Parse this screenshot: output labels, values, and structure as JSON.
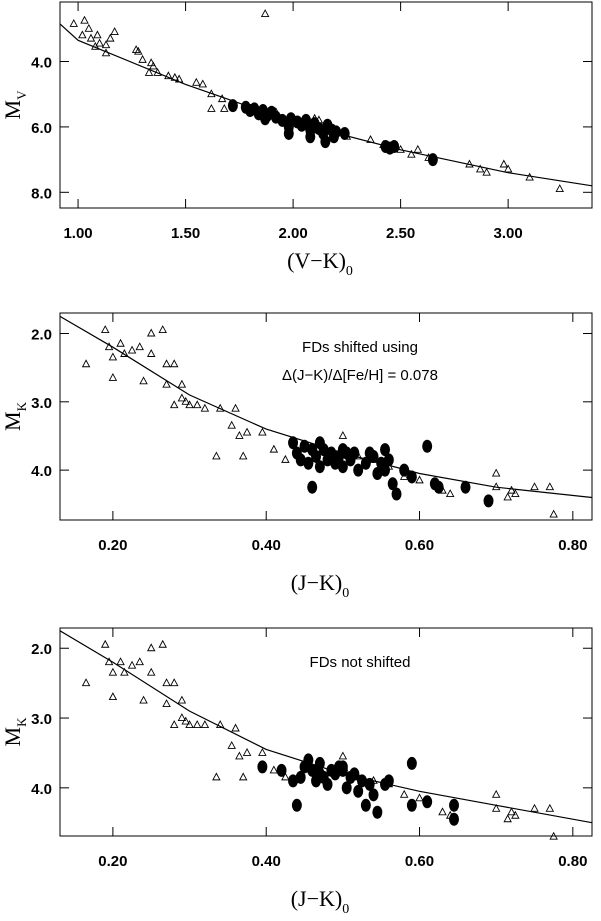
{
  "chart_data": [
    {
      "type": "scatter",
      "xlabel": "(V−K)",
      "xlabel_sub": "0",
      "ylabel": "M",
      "ylabel_sub": "V",
      "xlim": [
        0.916,
        3.39
      ],
      "ylim": [
        8.48,
        2.18
      ],
      "xticks": [
        {
          "value": 1.0,
          "label": "1.00"
        },
        {
          "value": 1.5,
          "label": "1.50"
        },
        {
          "value": 2.0,
          "label": "2.00"
        },
        {
          "value": 2.5,
          "label": "2.50"
        },
        {
          "value": 3.0,
          "label": "3.00"
        }
      ],
      "yticks": [
        {
          "value": 4.0,
          "label": "4.0"
        },
        {
          "value": 6.0,
          "label": "6.0"
        },
        {
          "value": 8.0,
          "label": "8.0"
        }
      ],
      "annotations": [],
      "series": [
        {
          "marker": "line",
          "color": "#000000",
          "x": [
            0.916,
            1.0,
            1.5,
            2.0,
            2.5,
            3.0,
            3.39
          ],
          "values": [
            2.85,
            3.35,
            4.7,
            5.85,
            6.7,
            7.4,
            7.8
          ]
        },
        {
          "marker": "triangle",
          "color": "#000000",
          "x": [
            0.98,
            1.03,
            1.05,
            1.02,
            1.06,
            1.09,
            1.1,
            1.08,
            1.13,
            1.15,
            1.17,
            1.13,
            1.27,
            1.28,
            1.3,
            1.34,
            1.35,
            1.37,
            1.33,
            1.42,
            1.45,
            1.47,
            1.55,
            1.58,
            1.62,
            1.62,
            1.67,
            1.68,
            1.87,
            1.92,
            2.1,
            2.12,
            2.25,
            2.36,
            2.42,
            2.5,
            2.55,
            2.58,
            2.63,
            2.82,
            2.87,
            2.9,
            2.98,
            3.0,
            3.1,
            3.24
          ],
          "values": [
            2.85,
            2.75,
            3.0,
            3.2,
            3.3,
            3.2,
            3.45,
            3.55,
            3.5,
            3.3,
            3.1,
            3.75,
            3.65,
            3.7,
            3.95,
            4.05,
            4.15,
            4.35,
            4.35,
            4.45,
            4.5,
            4.55,
            4.65,
            4.7,
            5.0,
            5.45,
            5.15,
            5.45,
            2.55,
            5.55,
            5.75,
            5.8,
            6.3,
            6.4,
            6.55,
            6.7,
            6.85,
            6.7,
            6.95,
            7.15,
            7.3,
            7.4,
            7.15,
            7.3,
            7.55,
            7.9
          ]
        },
        {
          "marker": "dot",
          "color": "#000000",
          "x": [
            1.72,
            1.78,
            1.8,
            1.82,
            1.84,
            1.86,
            1.88,
            1.9,
            1.92,
            1.95,
            1.98,
            1.99,
            2.02,
            2.04,
            2.06,
            2.08,
            2.1,
            2.12,
            2.14,
            2.16,
            2.18,
            2.19,
            2.2,
            2.24,
            2.15,
            2.08,
            1.98,
            2.43,
            2.45,
            2.47,
            2.65,
            1.87,
            2.1
          ],
          "values": [
            5.35,
            5.4,
            5.5,
            5.45,
            5.6,
            5.5,
            5.65,
            5.55,
            5.7,
            5.8,
            6.0,
            5.75,
            5.85,
            5.95,
            5.8,
            6.1,
            5.9,
            6.05,
            6.2,
            5.95,
            6.1,
            6.3,
            6.15,
            6.2,
            6.45,
            6.3,
            6.2,
            6.6,
            6.65,
            6.6,
            7.0,
            5.75,
            6.0
          ]
        }
      ]
    },
    {
      "type": "scatter",
      "xlabel": "(J−K)",
      "xlabel_sub": "0",
      "ylabel": "M",
      "ylabel_sub": "K",
      "xlim": [
        0.131,
        0.825
      ],
      "ylim": [
        4.73,
        1.7
      ],
      "xticks": [
        {
          "value": 0.2,
          "label": "0.20"
        },
        {
          "value": 0.4,
          "label": "0.40"
        },
        {
          "value": 0.6,
          "label": "0.60"
        },
        {
          "value": 0.8,
          "label": "0.80"
        }
      ],
      "yticks": [
        {
          "value": 2.0,
          "label": "2.0"
        },
        {
          "value": 3.0,
          "label": "3.0"
        },
        {
          "value": 4.0,
          "label": "4.0"
        }
      ],
      "annotations": [
        "FDs shifted using",
        "Δ(J−K)/Δ[Fe/H] = 0.078"
      ],
      "series": [
        {
          "marker": "line",
          "color": "#000000",
          "x": [
            0.131,
            0.2,
            0.3,
            0.4,
            0.5,
            0.6,
            0.7,
            0.825
          ],
          "values": [
            1.75,
            2.2,
            2.9,
            3.4,
            3.75,
            4.05,
            4.25,
            4.4
          ]
        },
        {
          "marker": "triangle",
          "color": "#000000",
          "x": [
            0.165,
            0.19,
            0.195,
            0.2,
            0.2,
            0.21,
            0.215,
            0.225,
            0.235,
            0.24,
            0.25,
            0.25,
            0.265,
            0.27,
            0.27,
            0.28,
            0.28,
            0.29,
            0.29,
            0.295,
            0.3,
            0.31,
            0.32,
            0.335,
            0.34,
            0.355,
            0.36,
            0.365,
            0.37,
            0.375,
            0.395,
            0.41,
            0.425,
            0.5,
            0.52,
            0.54,
            0.56,
            0.58,
            0.6,
            0.63,
            0.64,
            0.7,
            0.7,
            0.72,
            0.725,
            0.75,
            0.77,
            0.775,
            0.715
          ],
          "values": [
            2.45,
            1.95,
            2.2,
            2.65,
            2.35,
            2.15,
            2.3,
            2.25,
            2.2,
            2.7,
            2.0,
            2.3,
            1.95,
            2.45,
            2.75,
            2.45,
            3.05,
            2.95,
            2.75,
            3.0,
            3.05,
            3.05,
            3.1,
            3.8,
            3.1,
            3.35,
            3.1,
            3.5,
            3.8,
            3.45,
            3.45,
            3.7,
            3.85,
            3.5,
            3.8,
            3.85,
            3.95,
            4.1,
            4.15,
            4.3,
            4.35,
            4.05,
            4.25,
            4.3,
            4.35,
            4.25,
            4.25,
            4.65,
            4.4
          ]
        },
        {
          "marker": "dot",
          "color": "#000000",
          "x": [
            0.435,
            0.44,
            0.445,
            0.45,
            0.455,
            0.46,
            0.46,
            0.465,
            0.47,
            0.475,
            0.48,
            0.485,
            0.49,
            0.495,
            0.5,
            0.5,
            0.505,
            0.51,
            0.52,
            0.53,
            0.535,
            0.54,
            0.545,
            0.55,
            0.555,
            0.56,
            0.565,
            0.57,
            0.58,
            0.59,
            0.61,
            0.62,
            0.625,
            0.66,
            0.69,
            0.47,
            0.515,
            0.555
          ],
          "values": [
            3.6,
            3.75,
            3.85,
            3.65,
            3.9,
            3.7,
            4.25,
            3.8,
            3.95,
            3.7,
            3.85,
            3.75,
            3.9,
            3.8,
            3.7,
            3.95,
            3.75,
            3.85,
            4.0,
            3.9,
            3.75,
            3.8,
            4.05,
            3.9,
            3.7,
            3.85,
            4.2,
            4.35,
            4.0,
            4.1,
            3.65,
            4.2,
            4.25,
            4.25,
            4.45,
            3.6,
            3.75,
            4.0
          ]
        }
      ]
    },
    {
      "type": "scatter",
      "xlabel": "(J−K)",
      "xlabel_sub": "0",
      "ylabel": "M",
      "ylabel_sub": "K",
      "xlim": [
        0.131,
        0.825
      ],
      "ylim": [
        4.69,
        1.71
      ],
      "xticks": [
        {
          "value": 0.2,
          "label": "0.20"
        },
        {
          "value": 0.4,
          "label": "0.40"
        },
        {
          "value": 0.6,
          "label": "0.60"
        },
        {
          "value": 0.8,
          "label": "0.80"
        }
      ],
      "yticks": [
        {
          "value": 2.0,
          "label": "2.0"
        },
        {
          "value": 3.0,
          "label": "3.0"
        },
        {
          "value": 4.0,
          "label": "4.0"
        }
      ],
      "annotations": [
        "FDs not shifted"
      ],
      "series": [
        {
          "marker": "line",
          "color": "#000000",
          "x": [
            0.131,
            0.2,
            0.3,
            0.4,
            0.5,
            0.6,
            0.7,
            0.825
          ],
          "values": [
            1.75,
            2.2,
            2.9,
            3.45,
            3.8,
            4.05,
            4.25,
            4.5
          ]
        },
        {
          "marker": "triangle",
          "color": "#000000",
          "x": [
            0.165,
            0.19,
            0.195,
            0.2,
            0.2,
            0.21,
            0.215,
            0.225,
            0.235,
            0.24,
            0.25,
            0.25,
            0.265,
            0.27,
            0.27,
            0.28,
            0.28,
            0.29,
            0.29,
            0.295,
            0.3,
            0.31,
            0.32,
            0.335,
            0.34,
            0.355,
            0.36,
            0.365,
            0.37,
            0.375,
            0.395,
            0.41,
            0.425,
            0.5,
            0.52,
            0.54,
            0.56,
            0.58,
            0.6,
            0.63,
            0.64,
            0.7,
            0.7,
            0.72,
            0.725,
            0.75,
            0.77,
            0.775,
            0.715
          ],
          "values": [
            2.5,
            1.95,
            2.2,
            2.7,
            2.35,
            2.2,
            2.35,
            2.25,
            2.2,
            2.75,
            2.0,
            2.35,
            1.95,
            2.5,
            2.8,
            2.5,
            3.1,
            3.0,
            2.75,
            3.05,
            3.1,
            3.1,
            3.1,
            3.85,
            3.1,
            3.4,
            3.15,
            3.55,
            3.85,
            3.5,
            3.5,
            3.75,
            3.85,
            3.55,
            3.85,
            3.9,
            3.95,
            4.1,
            4.15,
            4.35,
            4.4,
            4.1,
            4.3,
            4.35,
            4.4,
            4.3,
            4.3,
            4.7,
            4.45
          ]
        },
        {
          "marker": "dot",
          "color": "#000000",
          "x": [
            0.395,
            0.42,
            0.435,
            0.44,
            0.445,
            0.45,
            0.455,
            0.46,
            0.465,
            0.47,
            0.475,
            0.48,
            0.485,
            0.49,
            0.495,
            0.5,
            0.505,
            0.51,
            0.515,
            0.52,
            0.525,
            0.53,
            0.535,
            0.54,
            0.545,
            0.555,
            0.56,
            0.59,
            0.59,
            0.61,
            0.645,
            0.645,
            0.47,
            0.5
          ],
          "values": [
            3.7,
            3.75,
            3.9,
            4.25,
            3.85,
            3.7,
            3.6,
            3.75,
            3.9,
            3.8,
            3.85,
            3.95,
            3.75,
            3.8,
            3.7,
            3.75,
            4.0,
            3.85,
            3.8,
            4.05,
            3.9,
            4.25,
            3.95,
            4.1,
            4.35,
            3.95,
            3.9,
            3.65,
            4.25,
            4.2,
            4.25,
            4.45,
            3.65,
            3.7
          ]
        }
      ]
    }
  ]
}
